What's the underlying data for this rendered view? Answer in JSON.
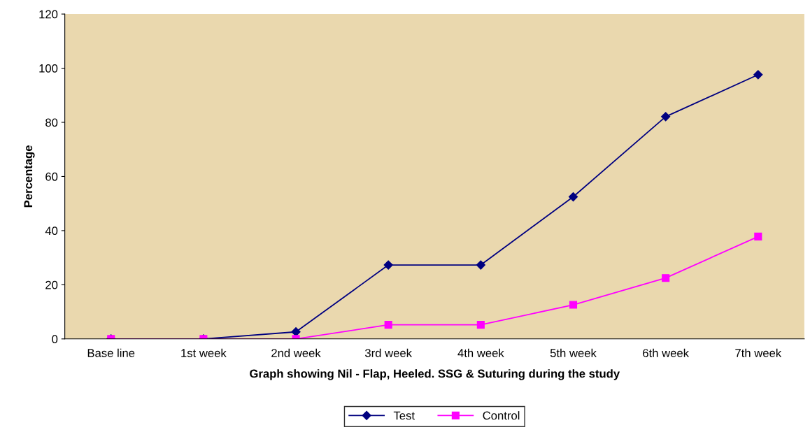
{
  "chart_data": {
    "type": "line",
    "xlabel": "Graph showing Nil - Flap, Heeled. SSG & Suturing during the study",
    "ylabel": "Percentage",
    "categories": [
      "Base line",
      "1st week",
      "2nd week",
      "3rd week",
      "4th week",
      "5th week",
      "6th week",
      "7th week"
    ],
    "series": [
      {
        "name": "Test",
        "color": "#000080",
        "marker": "diamond",
        "values": [
          0,
          0,
          2.6,
          27.3,
          27.3,
          52.5,
          82.1,
          97.6
        ]
      },
      {
        "name": "Control",
        "color": "#ff00ff",
        "marker": "square",
        "values": [
          0,
          0,
          0,
          5.2,
          5.2,
          12.6,
          22.5,
          37.8
        ]
      }
    ],
    "ylim": [
      0,
      120
    ],
    "yticks": [
      0,
      20,
      40,
      60,
      80,
      100,
      120
    ],
    "grid": false,
    "legend": "bottom"
  }
}
